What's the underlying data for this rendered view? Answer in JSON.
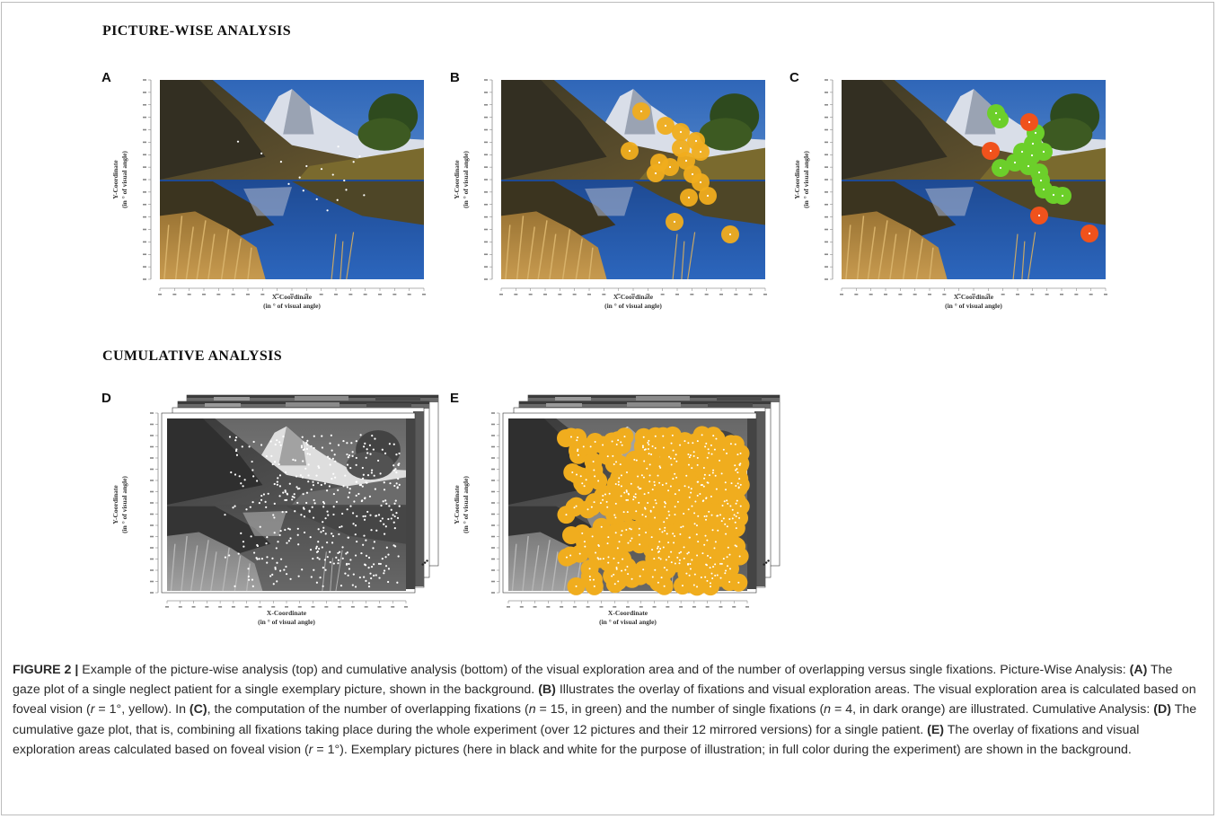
{
  "sections": {
    "picture_wise": "PICTURE-WISE ANALYSIS",
    "cumulative": "CUMULATIVE ANALYSIS"
  },
  "panels": [
    {
      "letter": "A",
      "xlabel_1": "X-Coordinate",
      "xlabel_2": "(in ° of visual angle)",
      "ylabel_1": "Y-Coordinate",
      "ylabel_2": "(in ° of visual angle)"
    },
    {
      "letter": "B",
      "xlabel_1": "X-Coordinate",
      "xlabel_2": "(in ° of visual angle)",
      "ylabel_1": "Y-Coordinate",
      "ylabel_2": "(in ° of visual angle)"
    },
    {
      "letter": "C",
      "xlabel_1": "X-Coordinate",
      "xlabel_2": "(in ° of visual angle)",
      "ylabel_1": "Y-Coordinate",
      "ylabel_2": "(in ° of visual angle)"
    },
    {
      "letter": "D",
      "xlabel_1": "X-Coordinate",
      "xlabel_2": "(in ° of visual angle)",
      "ylabel_1": "Y-Coordinate",
      "ylabel_2": "(in ° of visual angle)"
    },
    {
      "letter": "E",
      "xlabel_1": "X-Coordinate",
      "xlabel_2": "(in ° of visual angle)",
      "ylabel_1": "Y-Coordinate",
      "ylabel_2": "(in ° of visual angle)"
    }
  ],
  "colors": {
    "exploration_area": "#f0ad1e",
    "overlapping_fixation": "#6ccf2a",
    "single_fixation": "#f0521c",
    "fixation_dot": "#ffffff"
  },
  "caption": {
    "figure_label": "FIGURE 2 |",
    "t1": " Example of the picture-wise analysis (top) and cumulative analysis (bottom) of the visual exploration area and of the number of overlapping versus single fixations. Picture-Wise Analysis: ",
    "refA": "(A)",
    "t2": " The gaze plot of a single neglect patient for a single exemplary picture, shown in the background. ",
    "refB": "(B)",
    "t3": " Illustrates the overlay of fixations and visual exploration areas. The visual exploration area is calculated based on foveal vision (",
    "r1": "r",
    "t4": " = 1°, yellow). In ",
    "refC": "(C)",
    "t5": ", the computation of the number of overlapping fixations (",
    "n1": "n",
    "t6": " = 15, in green) and the number of single fixations (",
    "n2": "n",
    "t7": " = 4, in dark orange) are illustrated. Cumulative Analysis: ",
    "refD": "(D)",
    "t8": " The cumulative gaze plot, that is, combining all fixations taking place during the whole experiment (over 12 pictures and their 12 mirrored versions) for a single patient. ",
    "refE": "(E)",
    "t9": " The overlay of fixations and visual exploration areas calculated based on foveal vision (",
    "r2": "r",
    "t10": " = 1°). Exemplary pictures (here in black and white for the purpose of illustration; in full color during the experiment) are shown in the background."
  }
}
